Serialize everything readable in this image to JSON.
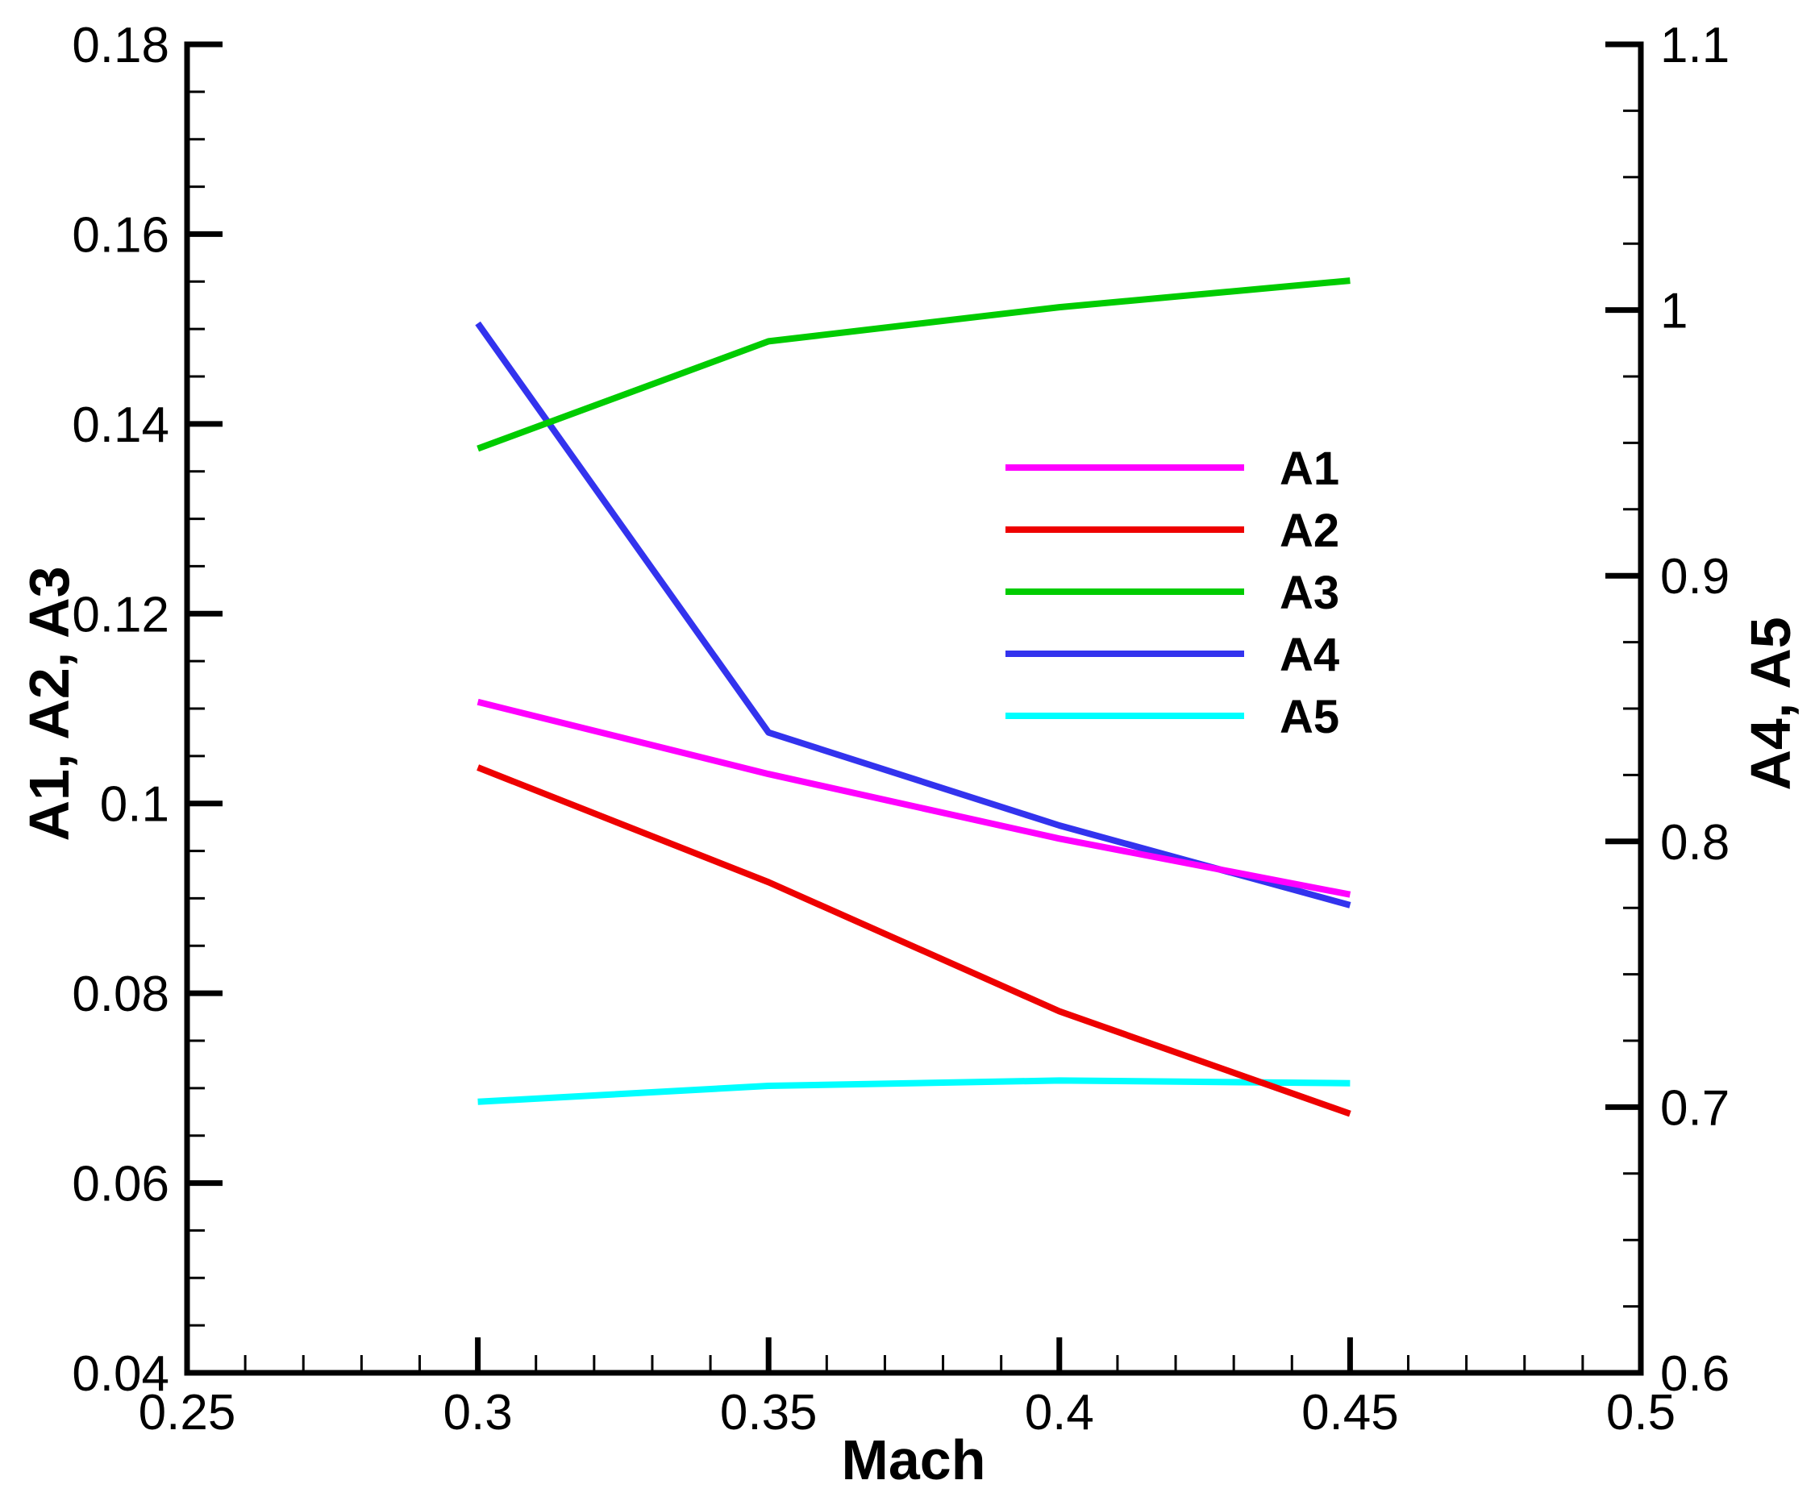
{
  "chart_data": {
    "type": "line",
    "x": [
      0.3,
      0.35,
      0.4,
      0.45
    ],
    "xlabel": "Mach",
    "ylabel_left": "A1, A2, A3",
    "ylabel_right": "A4, A5",
    "xlim": [
      0.25,
      0.5
    ],
    "ylim_left": [
      0.04,
      0.18
    ],
    "ylim_right": [
      0.6,
      1.1
    ],
    "x_ticks": [
      "0.25",
      "0.3",
      "0.35",
      "0.4",
      "0.45",
      "0.5"
    ],
    "y_left_ticks": [
      "0.04",
      "0.06",
      "0.08",
      "0.1",
      "0.12",
      "0.14",
      "0.16",
      "0.18"
    ],
    "y_right_ticks": [
      "0.6",
      "0.7",
      "0.8",
      "0.9",
      "1",
      "1.1"
    ],
    "grid": false,
    "legend_position": "center-right",
    "series": [
      {
        "name": "A1",
        "axis": "left",
        "color": "#ff00ff",
        "values": [
          0.1107,
          0.1031,
          0.0963,
          0.0904
        ]
      },
      {
        "name": "A2",
        "axis": "left",
        "color": "#ee0000",
        "values": [
          0.1038,
          0.0917,
          0.0781,
          0.0673
        ]
      },
      {
        "name": "A3",
        "axis": "left",
        "color": "#00cc00",
        "values": [
          0.1374,
          0.1487,
          0.1523,
          0.1551
        ]
      },
      {
        "name": "A4",
        "axis": "right",
        "color": "#3333ee",
        "values": [
          0.995,
          0.841,
          0.806,
          0.776
        ]
      },
      {
        "name": "A5",
        "axis": "right",
        "color": "#00ffff",
        "values": [
          0.702,
          0.708,
          0.71,
          0.709
        ]
      }
    ]
  }
}
